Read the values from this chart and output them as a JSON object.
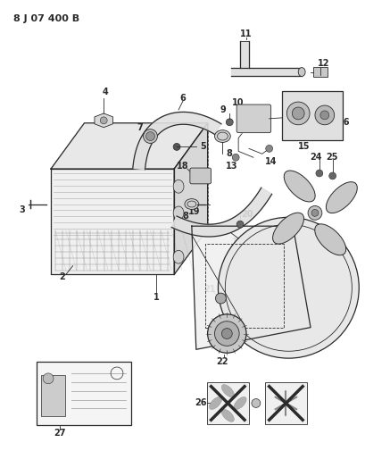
{
  "title": "8 J 07 400 B",
  "bg_color": "#ffffff",
  "line_color": "#2a2a2a",
  "title_fontsize": 8,
  "label_fontsize": 7,
  "fig_width": 4.09,
  "fig_height": 5.33,
  "dpi": 100
}
